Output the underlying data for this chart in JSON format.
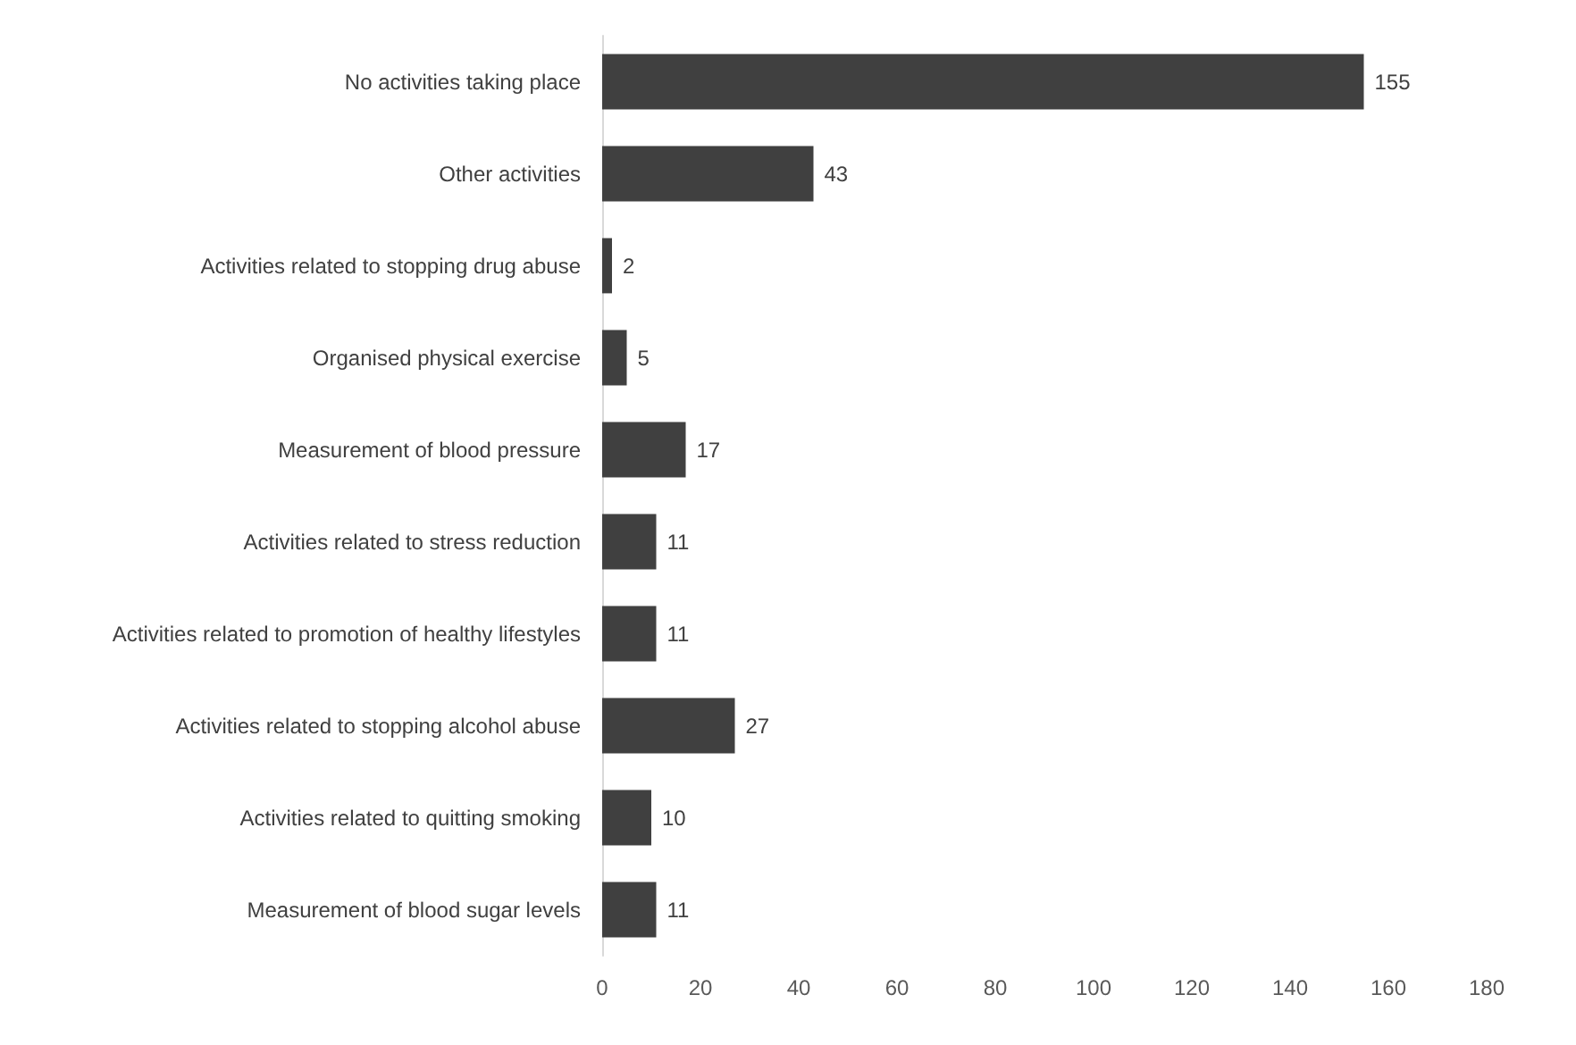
{
  "chart_data": {
    "type": "bar",
    "orientation": "horizontal",
    "categories": [
      "No activities taking place",
      "Other activities",
      "Activities related to stopping drug abuse",
      "Organised physical exercise",
      "Measurement of blood pressure",
      "Activities related to stress reduction",
      "Activities related to promotion of healthy lifestyles",
      "Activities related to stopping alcohol abuse",
      "Activities related to quitting smoking",
      "Measurement of blood sugar levels"
    ],
    "values": [
      155,
      43,
      2,
      5,
      17,
      11,
      11,
      27,
      10,
      11
    ],
    "color": "#404040",
    "xlim": [
      0,
      180
    ],
    "xticks": [
      0,
      20,
      40,
      60,
      80,
      100,
      120,
      140,
      160,
      180
    ],
    "data_labels": true
  }
}
